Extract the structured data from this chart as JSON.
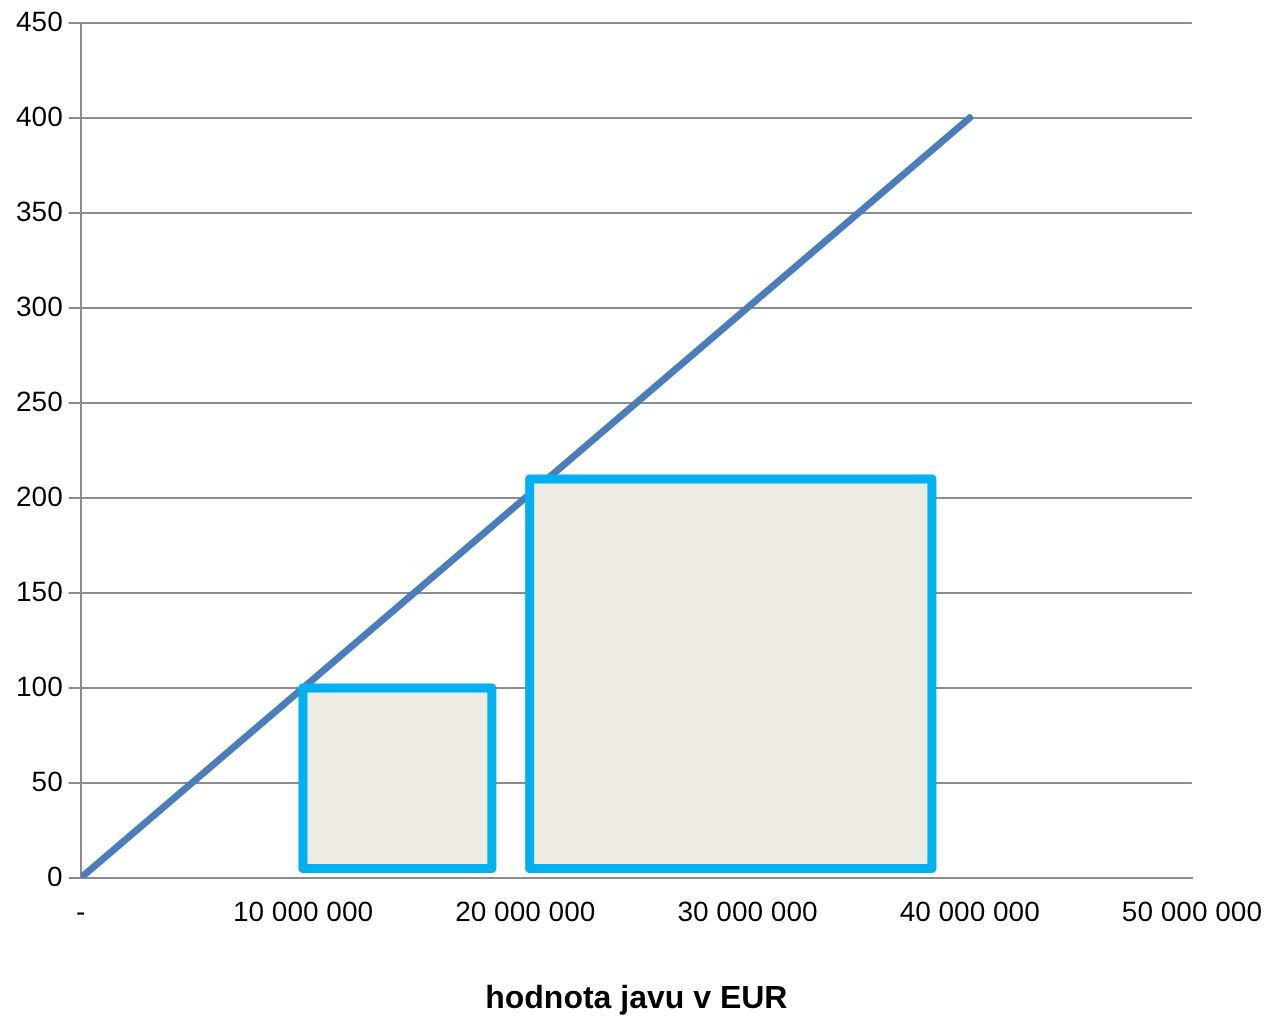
{
  "chart_data": {
    "type": "line",
    "xlabel": "hodnota javu v EUR",
    "xlim": [
      0,
      50000000
    ],
    "xticks": [
      {
        "value": 0,
        "label": "-"
      },
      {
        "value": 10000000,
        "label": "10 000 000"
      },
      {
        "value": 20000000,
        "label": "20 000 000"
      },
      {
        "value": 30000000,
        "label": "30 000 000"
      },
      {
        "value": 40000000,
        "label": "40 000 000"
      },
      {
        "value": 50000000,
        "label": "50 000 000"
      }
    ],
    "ylim": [
      0,
      450
    ],
    "yticks": [
      0,
      50,
      100,
      150,
      200,
      250,
      300,
      350,
      400,
      450
    ],
    "grid": "y",
    "legend": false,
    "marker": "none",
    "line_style": "solid",
    "series": [
      {
        "color": "#4a7ebb",
        "x": [
          0,
          40000000
        ],
        "values": [
          0,
          400
        ]
      },
      {
        "type": "area",
        "color": "#00b0f0",
        "x": [
          10000000,
          10000000,
          18500000,
          18500000,
          10000000
        ],
        "values": [
          5,
          100,
          100,
          5,
          5
        ]
      },
      {
        "type": "area",
        "color": "#00b0f0",
        "x": [
          20200000,
          20200000,
          38300000,
          38300000,
          20200000
        ],
        "values": [
          5,
          210,
          210,
          5,
          5
        ]
      }
    ]
  }
}
